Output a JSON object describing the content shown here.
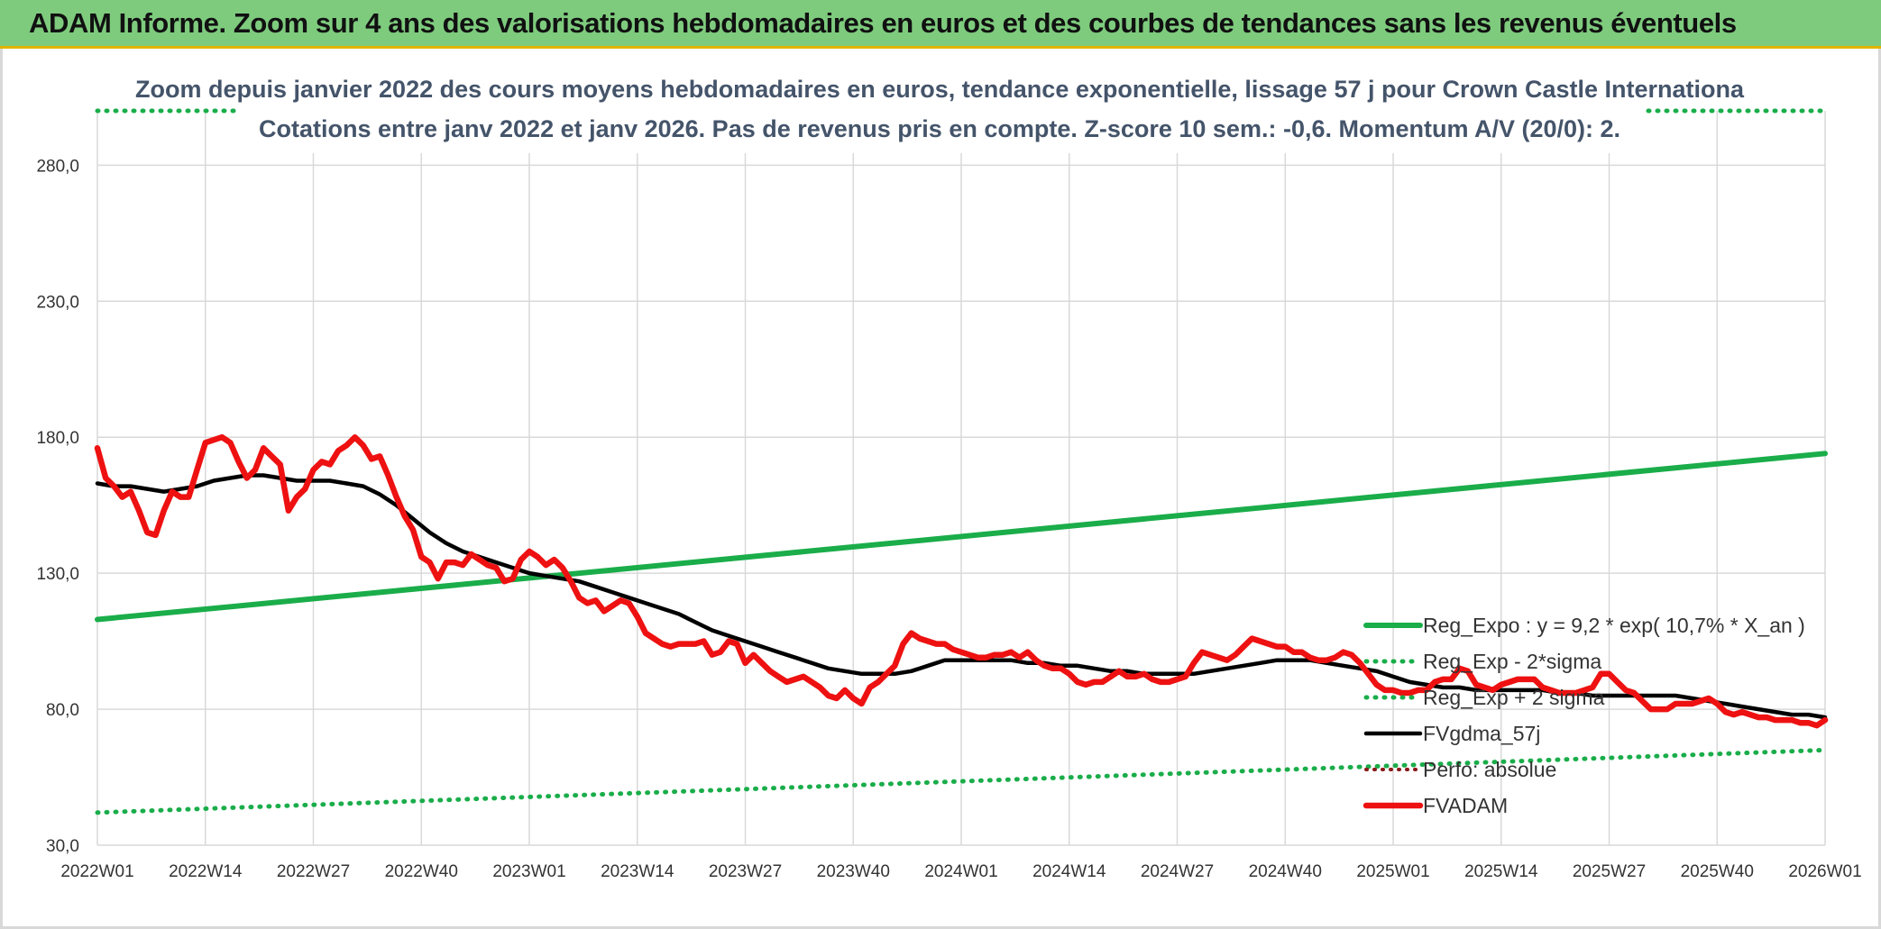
{
  "banner": {
    "title": "ADAM Informe. Zoom sur 4 ans des valorisations hebdomadaires en euros et des courbes de tendances sans les revenus éventuels"
  },
  "colors": {
    "banner_bg": "#7ecb7e",
    "reg_expo": "#1aad4a",
    "sigma": "#1aad4a",
    "fvgdma": "#000000",
    "perfo": "#8b1a1a",
    "fvadam": "#ee1111",
    "title": "#44546a",
    "grid": "#d9d9d9"
  },
  "chart_data": {
    "type": "line",
    "title_lines": [
      "Zoom depuis janvier 2022 des cours moyens hebdomadaires en euros, tendance exponentielle, lissage 57 j pour Crown Castle Internationa",
      "Cotations entre janv 2022 et janv 2026. Pas de revenus pris en compte. Z-score 10 sem.: -0,6. Momentum A/V (20/0): 2."
    ],
    "xlabel": "",
    "ylabel": "",
    "ylim": [
      30,
      300
    ],
    "y_ticks": [
      "280,0",
      "230,0",
      "180,0",
      "130,0",
      "80,0",
      "30,0"
    ],
    "y_tick_values": [
      280,
      230,
      180,
      130,
      80,
      30
    ],
    "x_ticks": [
      "2022W01",
      "2022W14",
      "2022W27",
      "2022W40",
      "2023W01",
      "2023W14",
      "2023W27",
      "2023W40",
      "2024W01",
      "2024W14",
      "2024W27",
      "2024W40",
      "2025W01",
      "2025W14",
      "2025W27",
      "2025W40",
      "2026W01"
    ],
    "x_range_weeks": [
      0,
      208
    ],
    "series": [
      {
        "name": "Reg_Expo : y = 9,2 * exp( 10,7% *  X_an )",
        "style": "solid",
        "x": [
          0,
          208
        ],
        "y": [
          113,
          174
        ]
      },
      {
        "name": "Reg_Exp - 2*sigma",
        "style": "dotted",
        "x": [
          0,
          208
        ],
        "y": [
          42,
          65
        ]
      },
      {
        "name": "Reg_Exp + 2 sigma",
        "style": "dotted",
        "x": [
          0,
          208
        ],
        "y": [
          300,
          300
        ]
      },
      {
        "name": "FVgdma_57j",
        "style": "solid",
        "x": [
          0,
          2,
          4,
          6,
          8,
          10,
          12,
          14,
          16,
          18,
          20,
          22,
          24,
          26,
          28,
          30,
          32,
          34,
          36,
          38,
          40,
          42,
          44,
          46,
          48,
          50,
          52,
          54,
          56,
          58,
          60,
          62,
          64,
          66,
          68,
          70,
          72,
          74,
          76,
          78,
          80,
          82,
          84,
          86,
          88,
          90,
          92,
          94,
          96,
          98,
          100,
          102,
          104,
          106,
          108,
          110,
          112,
          114,
          116,
          118,
          120,
          122,
          124,
          126,
          128,
          130,
          132,
          134,
          136,
          138,
          140,
          142,
          144,
          146,
          148,
          150,
          152,
          154,
          156,
          158,
          160,
          162,
          164,
          166,
          168,
          170,
          172,
          174,
          176,
          178,
          180,
          182,
          184,
          186,
          188,
          190,
          192,
          194,
          196,
          198,
          200,
          202,
          204,
          206,
          208
        ],
        "y": [
          163,
          162,
          162,
          161,
          160,
          161,
          162,
          164,
          165,
          166,
          166,
          165,
          164,
          164,
          164,
          163,
          162,
          159,
          155,
          150,
          145,
          141,
          138,
          136,
          134,
          132,
          130,
          129,
          128,
          127,
          125,
          123,
          121,
          119,
          117,
          115,
          112,
          109,
          107,
          105,
          103,
          101,
          99,
          97,
          95,
          94,
          93,
          93,
          93,
          94,
          96,
          98,
          98,
          98,
          98,
          98,
          97,
          97,
          96,
          96,
          95,
          94,
          94,
          93,
          93,
          93,
          93,
          94,
          95,
          96,
          97,
          98,
          98,
          98,
          97,
          96,
          95,
          94,
          92,
          90,
          89,
          88,
          88,
          87,
          87,
          87,
          87,
          87,
          86,
          86,
          85,
          85,
          85,
          85,
          85,
          85,
          84,
          83,
          82,
          81,
          80,
          79,
          78,
          78,
          77
        ]
      },
      {
        "name": "Perfo: absolue",
        "style": "dotted",
        "x": [],
        "y": []
      },
      {
        "name": "FVADAM",
        "style": "solid",
        "x": [
          0,
          1,
          2,
          3,
          4,
          5,
          6,
          7,
          8,
          9,
          10,
          11,
          12,
          13,
          14,
          15,
          16,
          17,
          18,
          19,
          20,
          21,
          22,
          23,
          24,
          25,
          26,
          27,
          28,
          29,
          30,
          31,
          32,
          33,
          34,
          35,
          36,
          37,
          38,
          39,
          40,
          41,
          42,
          43,
          44,
          45,
          46,
          47,
          48,
          49,
          50,
          51,
          52,
          53,
          54,
          55,
          56,
          57,
          58,
          59,
          60,
          61,
          62,
          63,
          64,
          65,
          66,
          67,
          68,
          69,
          70,
          71,
          72,
          73,
          74,
          75,
          76,
          77,
          78,
          79,
          80,
          81,
          82,
          83,
          84,
          85,
          86,
          87,
          88,
          89,
          90,
          91,
          92,
          93,
          94,
          95,
          96,
          97,
          98,
          99,
          100,
          101,
          102,
          103,
          104,
          105,
          106,
          107,
          108,
          109,
          110,
          111,
          112,
          113,
          114,
          115,
          116,
          117,
          118,
          119,
          120,
          121,
          122,
          123,
          124,
          125,
          126,
          127,
          128,
          129,
          130,
          131,
          132,
          133,
          134,
          135,
          136,
          137,
          138,
          139,
          140,
          141,
          142,
          143,
          144,
          145,
          146,
          147,
          148,
          149,
          150,
          151,
          152,
          153,
          154,
          155,
          156,
          157,
          158,
          159,
          160,
          161,
          162,
          163,
          164,
          165,
          166,
          167,
          168,
          169,
          170,
          171,
          172,
          173,
          174,
          175,
          176,
          177,
          178,
          179,
          180,
          181,
          182,
          183,
          184,
          185,
          186,
          187,
          188,
          189,
          190,
          191,
          192,
          193,
          194,
          195,
          196,
          197,
          198,
          199,
          200,
          201,
          202,
          203,
          204,
          205,
          206,
          207,
          208
        ],
        "y": [
          176,
          165,
          162,
          158,
          160,
          153,
          145,
          144,
          153,
          160,
          158,
          158,
          168,
          178,
          179,
          180,
          178,
          171,
          165,
          168,
          176,
          173,
          170,
          153,
          158,
          161,
          168,
          171,
          170,
          175,
          177,
          180,
          177,
          172,
          173,
          166,
          158,
          151,
          146,
          136,
          134,
          128,
          134,
          134,
          133,
          137,
          135,
          133,
          132,
          127,
          128,
          135,
          138,
          136,
          133,
          135,
          132,
          127,
          121,
          119,
          120,
          116,
          118,
          120,
          119,
          114,
          108,
          106,
          104,
          103,
          104,
          104,
          104,
          105,
          100,
          101,
          105,
          104,
          97,
          100,
          97,
          94,
          92,
          90,
          91,
          92,
          90,
          88,
          85,
          84,
          87,
          84,
          82,
          88,
          90,
          93,
          96,
          104,
          108,
          106,
          105,
          104,
          104,
          102,
          101,
          100,
          99,
          99,
          100,
          100,
          101,
          99,
          101,
          98,
          96,
          95,
          95,
          93,
          90,
          89,
          90,
          90,
          92,
          94,
          92,
          92,
          93,
          91,
          90,
          90,
          91,
          92,
          97,
          101,
          100,
          99,
          98,
          100,
          103,
          106,
          105,
          104,
          103,
          103,
          101,
          101,
          99,
          98,
          98,
          99,
          101,
          100,
          97,
          93,
          89,
          87,
          87,
          86,
          86,
          87,
          87,
          90,
          91,
          91,
          95,
          94,
          89,
          88,
          87,
          89,
          90,
          91,
          91,
          91,
          88,
          87,
          86,
          86,
          86,
          87,
          88,
          93,
          93,
          90,
          87,
          86,
          83,
          80,
          80,
          80,
          82,
          82,
          82,
          83,
          84,
          82,
          79,
          78,
          79,
          78,
          77,
          77,
          76,
          76,
          76,
          75,
          75,
          74,
          76
        ]
      }
    ],
    "legend_position": "bottom-right",
    "legend": [
      "Reg_Expo : y = 9,2 * exp( 10,7% *  X_an )",
      "Reg_Exp - 2*sigma",
      "Reg_Exp + 2 sigma",
      "FVgdma_57j",
      "Perfo: absolue",
      "FVADAM"
    ]
  }
}
